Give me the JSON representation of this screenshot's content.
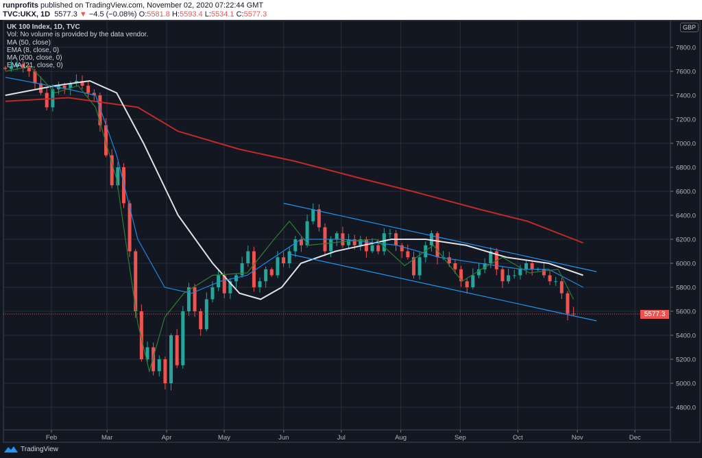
{
  "header": {
    "author": "runprofits",
    "published": "published on TradingView.com, November 02, 2020 07:22:44 GMT",
    "symbol": "TVC:UKX, 1D",
    "last": "5577.3",
    "change": "−4.5 (−0.08%)",
    "o_label": "O:",
    "o": "5581.8",
    "h_label": "H:",
    "h": "5593.4",
    "l_label": "L:",
    "l": "5534.1",
    "c_label": "C:",
    "c": "5577.3"
  },
  "legend": {
    "title": "UK 100 Index, 1D, TVC",
    "vol": "Vol: No volume is provided by the data vendor.",
    "ma50": "MA (50, close)",
    "ema8": "EMA (8, close, 0)",
    "ma200": "MA (200, close, 0)",
    "ema21": "EMA (21, close, 0)"
  },
  "currency": "GBP",
  "current_price_label": "5577.3",
  "footer": {
    "brand": "TradingView"
  },
  "colors": {
    "up": "#26a69a",
    "down": "#ef5350",
    "ma50": "#e0e3eb",
    "ema8": "#2e7d32",
    "ma200": "#c62828",
    "ema21": "#1e88e5",
    "channel": "#2196f3"
  },
  "chart_data": {
    "type": "candlestick",
    "title": "UK 100 Index, 1D, TVC",
    "x_unit": "day of year 2020",
    "ylim": [
      4600,
      8000
    ],
    "y_ticks": [
      "4800.0",
      "5000.0",
      "5200.0",
      "5400.0",
      "5600.0",
      "5800.0",
      "6000.0",
      "6200.0",
      "6400.0",
      "6600.0",
      "6800.0",
      "7000.0",
      "7200.0",
      "7400.0",
      "7600.0",
      "7800.0"
    ],
    "x_ticks": [
      {
        "label": "Feb",
        "day": 31
      },
      {
        "label": "Mar",
        "day": 60
      },
      {
        "label": "Apr",
        "day": 91
      },
      {
        "label": "May",
        "day": 121
      },
      {
        "label": "Jun",
        "day": 152
      },
      {
        "label": "Jul",
        "day": 182
      },
      {
        "label": "Aug",
        "day": 213
      },
      {
        "label": "Sep",
        "day": 244
      },
      {
        "label": "Oct",
        "day": 274
      },
      {
        "label": "Nov",
        "day": 305
      },
      {
        "label": "Dec",
        "day": 335
      }
    ],
    "candle_start_day": 7,
    "candle_end_day": 303,
    "closes": [
      7620,
      7640,
      7660,
      7630,
      7600,
      7500,
      7420,
      7300,
      7450,
      7480,
      7460,
      7500,
      7520,
      7480,
      7420,
      7400,
      7150,
      6900,
      6650,
      6800,
      6500,
      6100,
      5600,
      5200,
      5300,
      5100,
      5200,
      5000,
      5400,
      5150,
      5600,
      5800,
      5600,
      5450,
      5700,
      5800,
      5900,
      5750,
      5850,
      5900,
      6000,
      6100,
      5800,
      5850,
      5950,
      5900,
      6050,
      6000,
      6100,
      6200,
      6150,
      6350,
      6450,
      6300,
      6100,
      6200,
      6250,
      6150,
      6200,
      6150,
      6200,
      6100,
      6150,
      6100,
      6250,
      6250,
      6150,
      6100,
      6050,
      5900,
      6050,
      6150,
      6250,
      6050,
      6050,
      6000,
      5950,
      5850,
      5800,
      5900,
      5950,
      6000,
      6100,
      5950,
      5850,
      5900,
      5900,
      5950,
      6000,
      5950,
      5950,
      5900,
      5850,
      5850,
      5750,
      5580,
      5577.3
    ],
    "series": [
      {
        "name": "MA (200, close, 0)",
        "key": "ma200",
        "points": [
          [
            7,
            7350
          ],
          [
            40,
            7380
          ],
          [
            76,
            7300
          ],
          [
            97,
            7100
          ],
          [
            129,
            6950
          ],
          [
            158,
            6850
          ],
          [
            194,
            6700
          ],
          [
            219,
            6600
          ],
          [
            254,
            6450
          ],
          [
            279,
            6350
          ],
          [
            308,
            6170
          ]
        ]
      },
      {
        "name": "MA (50, close)",
        "key": "ma50",
        "points": [
          [
            7,
            7400
          ],
          [
            33,
            7480
          ],
          [
            51,
            7520
          ],
          [
            65,
            7420
          ],
          [
            79,
            7000
          ],
          [
            97,
            6400
          ],
          [
            115,
            6000
          ],
          [
            129,
            5750
          ],
          [
            140,
            5700
          ],
          [
            151,
            5800
          ],
          [
            161,
            6000
          ],
          [
            179,
            6100
          ],
          [
            208,
            6200
          ],
          [
            226,
            6200
          ],
          [
            247,
            6150
          ],
          [
            268,
            6050
          ],
          [
            290,
            6000
          ],
          [
            308,
            5900
          ]
        ]
      },
      {
        "name": "EMA (21, close, 0)",
        "key": "ema21",
        "points": [
          [
            7,
            7550
          ],
          [
            40,
            7450
          ],
          [
            54,
            7400
          ],
          [
            65,
            6900
          ],
          [
            76,
            6200
          ],
          [
            90,
            5800
          ],
          [
            104,
            5750
          ],
          [
            119,
            5850
          ],
          [
            133,
            5900
          ],
          [
            147,
            6050
          ],
          [
            161,
            6200
          ],
          [
            183,
            6200
          ],
          [
            211,
            6150
          ],
          [
            233,
            6050
          ],
          [
            254,
            6000
          ],
          [
            276,
            5950
          ],
          [
            290,
            5950
          ],
          [
            308,
            5800
          ]
        ]
      },
      {
        "name": "EMA (8, close, 0)",
        "key": "ema8",
        "points": [
          [
            7,
            7600
          ],
          [
            20,
            7640
          ],
          [
            33,
            7420
          ],
          [
            45,
            7480
          ],
          [
            54,
            7300
          ],
          [
            65,
            6700
          ],
          [
            76,
            5500
          ],
          [
            82,
            5100
          ],
          [
            90,
            5550
          ],
          [
            100,
            5750
          ],
          [
            115,
            5900
          ],
          [
            133,
            5920
          ],
          [
            147,
            6200
          ],
          [
            155,
            6350
          ],
          [
            165,
            6150
          ],
          [
            183,
            6180
          ],
          [
            200,
            6200
          ],
          [
            215,
            5980
          ],
          [
            230,
            6150
          ],
          [
            245,
            5850
          ],
          [
            255,
            5950
          ],
          [
            266,
            6050
          ],
          [
            280,
            5920
          ],
          [
            295,
            5950
          ],
          [
            303,
            5700
          ]
        ]
      },
      {
        "name": "Channel upper",
        "key": "channel",
        "points": [
          [
            152,
            6500
          ],
          [
            315,
            5930
          ]
        ]
      },
      {
        "name": "Channel lower",
        "key": "channel",
        "points": [
          [
            154,
            6080
          ],
          [
            315,
            5520
          ]
        ]
      }
    ],
    "current_price": 5577.3
  }
}
